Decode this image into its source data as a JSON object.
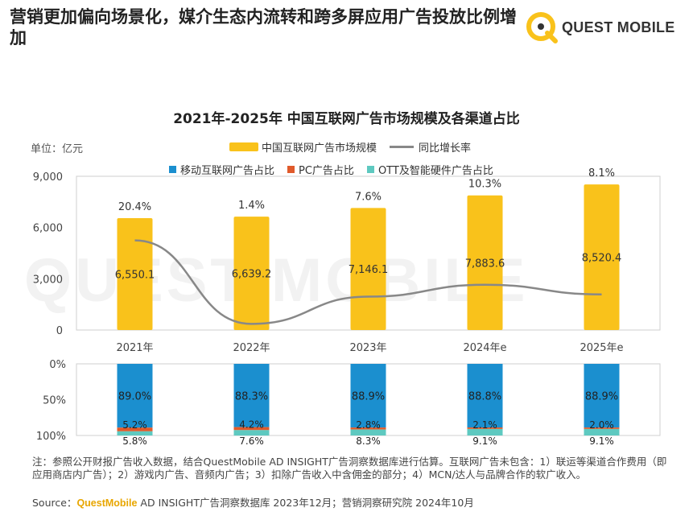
{
  "headline": "营销更加偏向场景化，媒介生态内流转和跨多屏应用广告投放比例增加",
  "logo": {
    "text": "QUEST MOBILE"
  },
  "watermark": "QUEST MOBILE",
  "colors": {
    "bar": "#f9c21b",
    "line": "#888888",
    "mobile": "#1b8fcf",
    "pc": "#e05a2b",
    "ott": "#5ec9c0"
  },
  "chart_data": {
    "type": "bar",
    "title": "2021年-2025年 中国互联网广告市场规模及各渠道占比",
    "unit_label": "单位：亿元",
    "categories": [
      "2021年",
      "2022年",
      "2023年",
      "2024年e",
      "2025年e"
    ],
    "top": {
      "series": [
        {
          "name": "中国互联网广告市场规模",
          "type": "bar",
          "values": [
            6550.1,
            6639.2,
            7146.1,
            7883.6,
            8520.4
          ],
          "labels": [
            "6,550.1",
            "6,639.2",
            "7,146.1",
            "7,883.6",
            "8,520.4"
          ]
        },
        {
          "name": "同比增长率",
          "type": "line",
          "values": [
            20.4,
            1.4,
            7.6,
            10.3,
            8.1
          ],
          "labels": [
            "20.4%",
            "1.4%",
            "7.6%",
            "10.3%",
            "8.1%"
          ]
        }
      ],
      "yticks": [
        "0",
        "3,000",
        "6,000",
        "9,000"
      ],
      "ylim": [
        0,
        9000
      ]
    },
    "bottom": {
      "type": "stacked-bar",
      "series": [
        {
          "name": "移动互联网广告占比",
          "values": [
            89.0,
            88.3,
            88.9,
            88.8,
            88.9
          ],
          "labels": [
            "89.0%",
            "88.3%",
            "88.9%",
            "88.8%",
            "88.9%"
          ]
        },
        {
          "name": "PC广告占比",
          "values": [
            5.2,
            4.2,
            2.8,
            2.1,
            2.0
          ],
          "labels": [
            "5.2%",
            "4.2%",
            "2.8%",
            "2.1%",
            "2.0%"
          ]
        },
        {
          "name": "OTT及智能硬件广告占比",
          "values": [
            5.8,
            7.6,
            8.3,
            9.1,
            9.1
          ],
          "labels": [
            "5.8%",
            "7.6%",
            "8.3%",
            "9.1%",
            "9.1%"
          ]
        }
      ],
      "yticks": [
        "0%",
        "50%",
        "100%"
      ],
      "ylim": [
        0,
        100
      ]
    }
  },
  "note": "注：参照公开财报广告收入数据，结合QuestMobile AD INSIGHT广告洞察数据库进行估算。互联网广告未包含：1）联运等渠道合作费用（即应用商店内广告）；2）游戏内广告、音频内广告；3）扣除广告收入中含佣金的部分；4）MCN/达人与品牌合作的软广收入。",
  "source": {
    "prefix": "Source：",
    "brand": "QuestMobile",
    "rest": " AD INSIGHT广告洞察数据库 2023年12月；营销洞察研究院 2024年10月"
  }
}
